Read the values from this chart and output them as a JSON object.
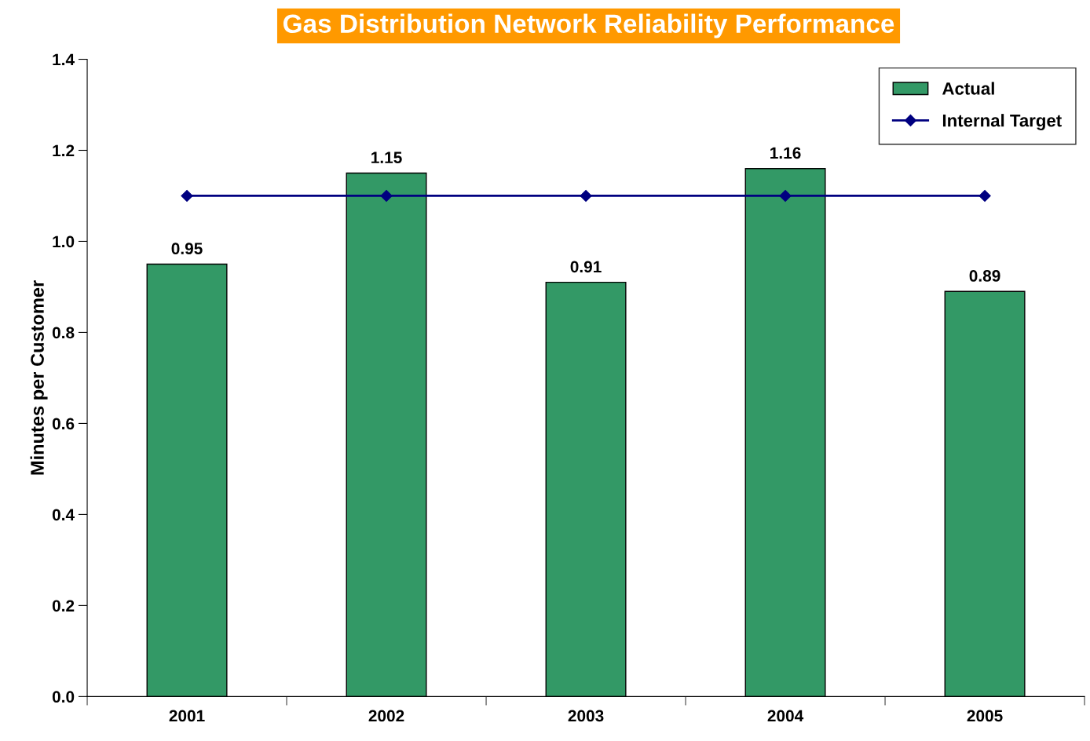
{
  "chart_data": {
    "type": "bar",
    "title": "Gas Distribution Network Reliability Performance",
    "ylabel": "Minutes per Customer",
    "categories": [
      "2001",
      "2002",
      "2003",
      "2004",
      "2005"
    ],
    "series": [
      {
        "name": "Actual",
        "color": "#339966",
        "values": [
          0.95,
          1.15,
          0.91,
          1.16,
          0.89
        ],
        "data_labels": true
      },
      {
        "name": "Internal Target",
        "type": "line",
        "color": "#000080",
        "values": [
          1.1,
          1.1,
          1.1,
          1.1,
          1.1
        ],
        "marker": "diamond",
        "line_style": "solid"
      }
    ],
    "ylim": [
      0,
      1.4
    ],
    "yticks": [
      {
        "value": 0,
        "label": "0.0"
      },
      {
        "value": 0.2,
        "label": "0.2"
      },
      {
        "value": 0.4,
        "label": "0.4"
      },
      {
        "value": 0.6,
        "label": "0.6"
      },
      {
        "value": 0.8,
        "label": "0.8"
      },
      {
        "value": 1.0,
        "label": "1.0"
      },
      {
        "value": 1.2,
        "label": "1.2"
      },
      {
        "value": 1.4,
        "label": "1.4"
      }
    ],
    "grid": false,
    "legend": "upper right"
  }
}
